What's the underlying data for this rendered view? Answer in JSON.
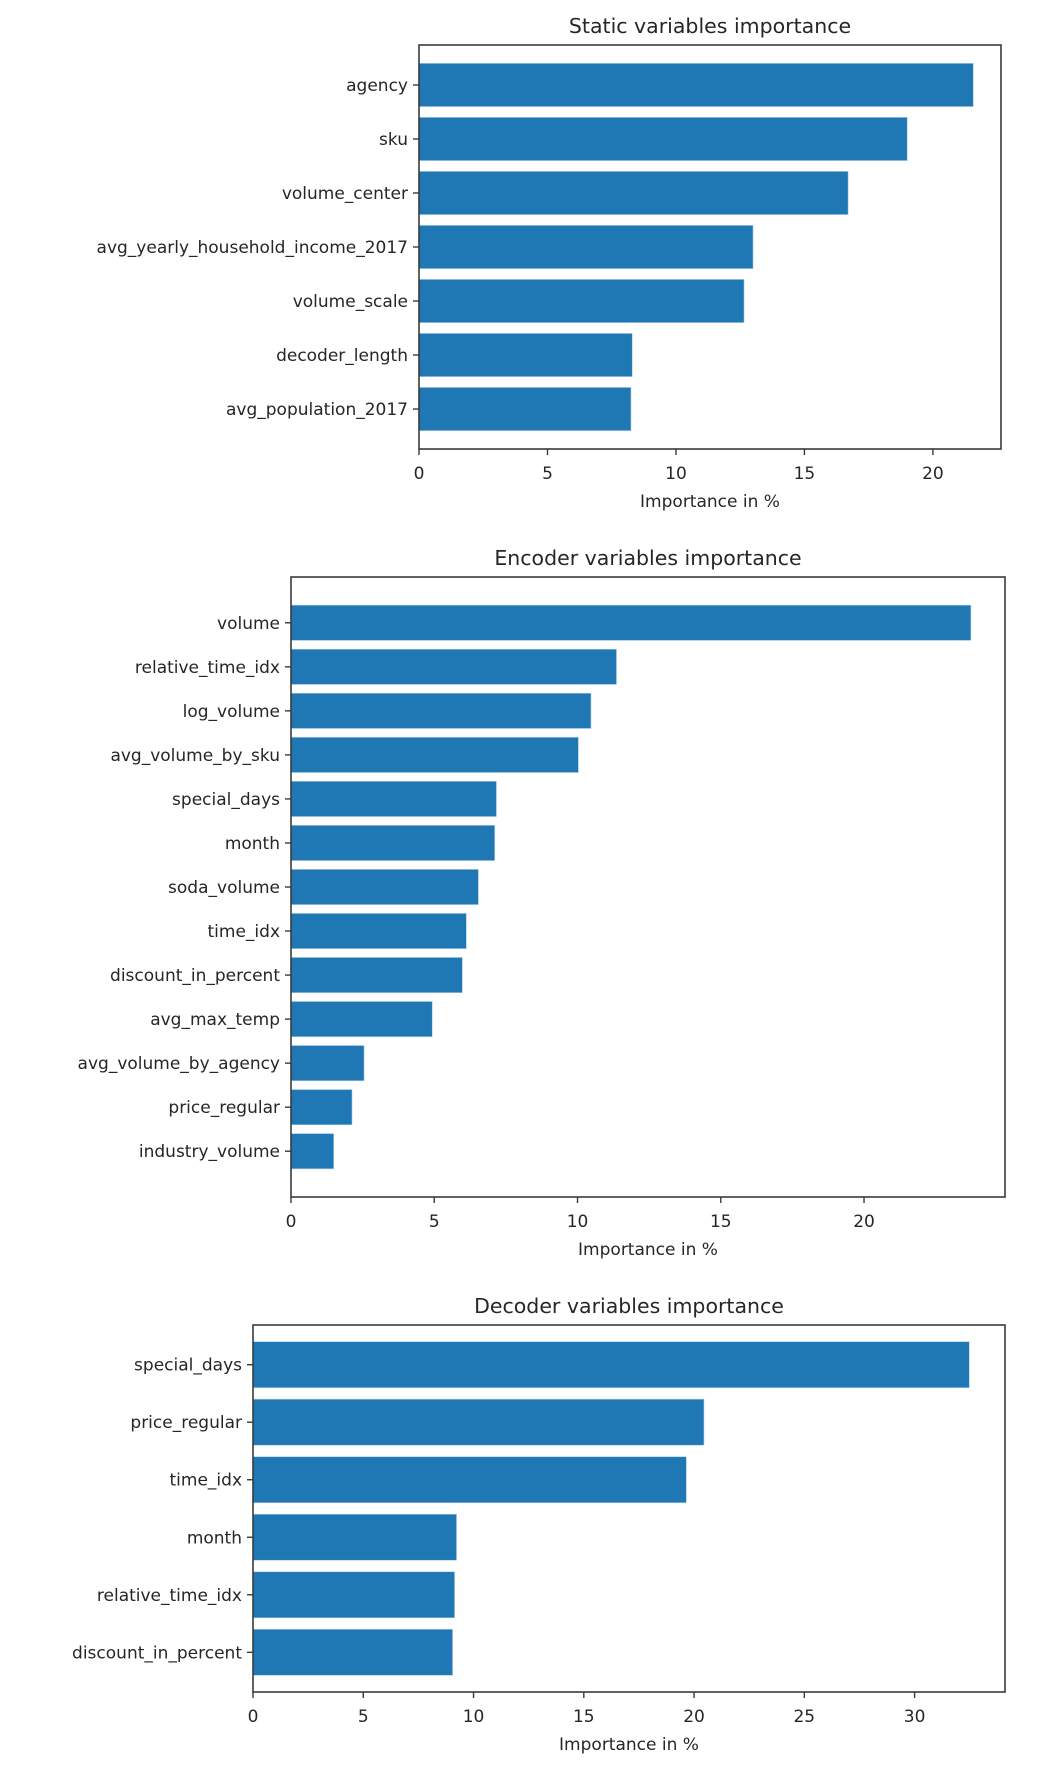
{
  "chart_data": [
    {
      "type": "bar",
      "orientation": "horizontal",
      "title": "Static variables importance",
      "xlabel": "Importance in %",
      "ylabel": "",
      "categories": [
        "agency",
        "sku",
        "volume_center",
        "avg_yearly_household_income_2017",
        "volume_scale",
        "decoder_length",
        "avg_population_2017"
      ],
      "values": [
        21.57,
        19.0,
        16.7,
        13.0,
        12.65,
        8.3,
        8.25
      ],
      "xlim": [
        0,
        22.65
      ],
      "xticks": [
        0,
        5,
        10,
        15,
        20
      ],
      "grid": false,
      "color": "#1f77b4"
    },
    {
      "type": "bar",
      "orientation": "horizontal",
      "title": "Encoder variables importance",
      "xlabel": "Importance in %",
      "ylabel": "",
      "categories": [
        "volume",
        "relative_time_idx",
        "log_volume",
        "avg_volume_by_sku",
        "special_days",
        "month",
        "soda_volume",
        "time_idx",
        "discount_in_percent",
        "avg_max_temp",
        "avg_volume_by_agency",
        "price_regular",
        "industry_volume"
      ],
      "values": [
        23.73,
        11.36,
        10.47,
        10.03,
        7.17,
        7.11,
        6.54,
        6.12,
        5.98,
        4.93,
        2.55,
        2.13,
        1.49
      ],
      "xlim": [
        0,
        24.92
      ],
      "xticks": [
        0,
        5,
        10,
        15,
        20
      ],
      "grid": false,
      "color": "#1f77b4"
    },
    {
      "type": "bar",
      "orientation": "horizontal",
      "title": "Decoder variables importance",
      "xlabel": "Importance in %",
      "ylabel": "",
      "categories": [
        "special_days",
        "price_regular",
        "time_idx",
        "month",
        "relative_time_idx",
        "discount_in_percent"
      ],
      "values": [
        32.48,
        20.45,
        19.65,
        9.23,
        9.14,
        9.05
      ],
      "xlim": [
        0,
        34.1
      ],
      "xticks": [
        0,
        5,
        10,
        15,
        20,
        25,
        30
      ],
      "grid": false,
      "color": "#1f77b4"
    }
  ]
}
